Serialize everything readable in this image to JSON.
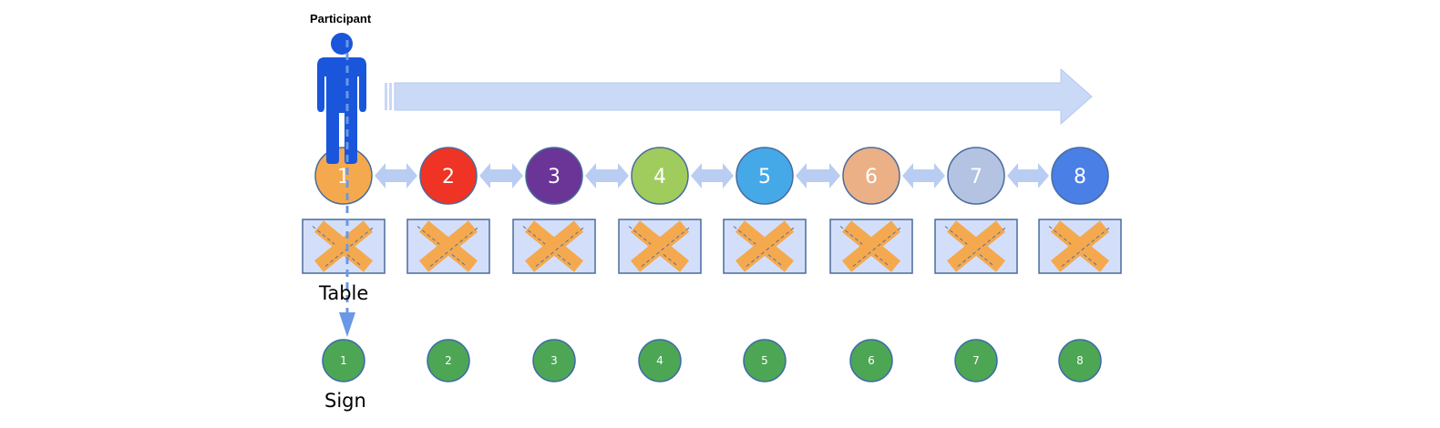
{
  "participant": {
    "label": "Participant",
    "color": "#1a56db"
  },
  "captions": {
    "table": "Table",
    "sign": "Sign"
  },
  "flow_arrow": {
    "color": "#c9d9f6",
    "stroke": "#b3c9ef",
    "direction": "right"
  },
  "connector_color": "#b9cdf3",
  "stations": [
    {
      "label": "1",
      "color": "#f5a94e",
      "text_color": "#ffffff"
    },
    {
      "label": "2",
      "color": "#ef3324",
      "text_color": "#ffffff"
    },
    {
      "label": "3",
      "color": "#6a3597",
      "text_color": "#ffffff"
    },
    {
      "label": "4",
      "color": "#9fcc5d",
      "text_color": "#ffffff"
    },
    {
      "label": "5",
      "color": "#45a9e8",
      "text_color": "#ffffff"
    },
    {
      "label": "6",
      "color": "#ebb086",
      "text_color": "#ffffff"
    },
    {
      "label": "7",
      "color": "#b4c3e2",
      "text_color": "#ffffff"
    },
    {
      "label": "8",
      "color": "#4a7fe6",
      "text_color": "#ffffff"
    }
  ],
  "tables": {
    "fill": "#d3dffa",
    "stroke": "#4a6b9c",
    "cross_color": "#f5a94e",
    "count": 8
  },
  "signs": [
    {
      "label": "1"
    },
    {
      "label": "2"
    },
    {
      "label": "3"
    },
    {
      "label": "4"
    },
    {
      "label": "5"
    },
    {
      "label": "6"
    },
    {
      "label": "7"
    },
    {
      "label": "8"
    }
  ],
  "sign_color": "#4da654",
  "path_color": "#6b98e6"
}
